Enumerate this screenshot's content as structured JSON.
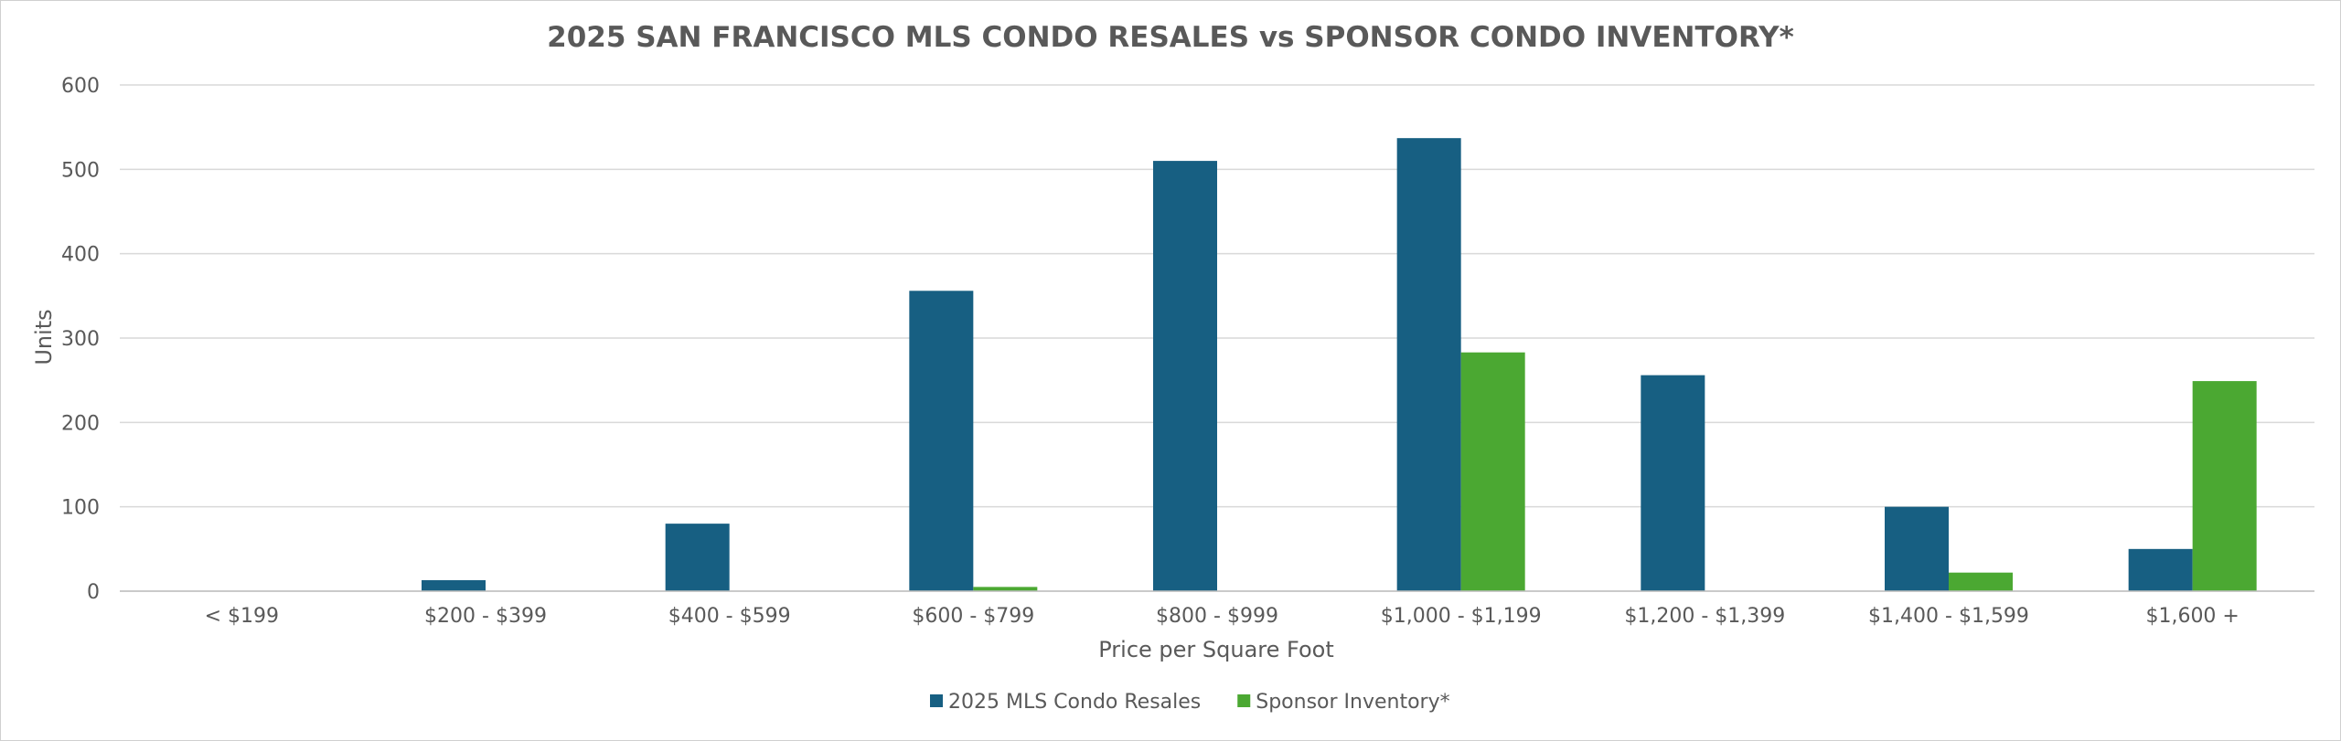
{
  "colors": {
    "resales": "#175F82",
    "sponsor": "#4BA832",
    "grid": "#d9d9d9",
    "text": "#595959"
  },
  "chart_data": {
    "type": "bar",
    "title": "2025 SAN FRANCISCO MLS CONDO RESALES vs SPONSOR CONDO INVENTORY*",
    "xlabel": "Price per Square Foot",
    "ylabel": "Units",
    "ylim": [
      0,
      600
    ],
    "yticks": [
      0,
      100,
      200,
      300,
      400,
      500,
      600
    ],
    "grid": true,
    "legend_position": "bottom",
    "categories": [
      "< $199",
      "$200 - $399",
      "$400 - $599",
      "$600 - $799",
      "$800 - $999",
      "$1,000 - $1,199",
      "$1,200 - $1,399",
      "$1,400 - $1,599",
      "$1,600 +"
    ],
    "series": [
      {
        "name": "2025 MLS Condo Resales",
        "values": [
          0,
          13,
          80,
          356,
          510,
          537,
          256,
          100,
          50
        ]
      },
      {
        "name": "Sponsor Inventory*",
        "values": [
          0,
          0,
          0,
          5,
          0,
          283,
          0,
          22,
          249
        ]
      }
    ]
  }
}
